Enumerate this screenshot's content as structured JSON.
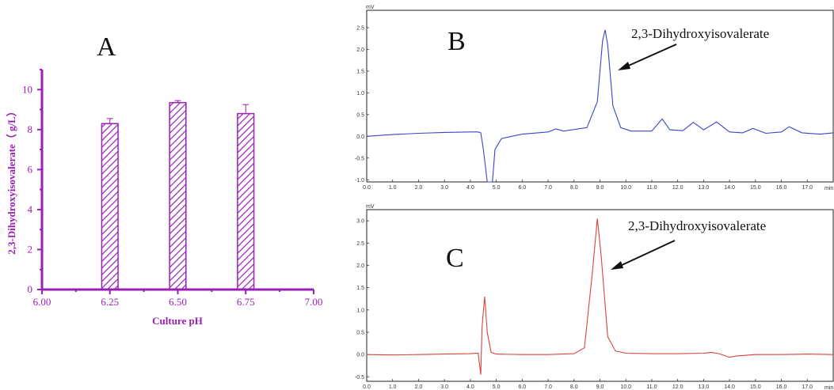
{
  "colors": {
    "bar": "#9a1fb5",
    "trace_b": "#3a44c8",
    "trace_c": "#d9443a"
  },
  "chart_data": [
    {
      "type": "bar",
      "panel_label": "A",
      "xlabel": "Culture pH",
      "ylabel": "2,3-Dihydroxyisovalerate（ g/L）",
      "x_ticks": [
        "6.00",
        "6.25",
        "6.50",
        "6.75",
        "7.00"
      ],
      "xlim": [
        6.0,
        7.0
      ],
      "ylim": [
        0,
        11
      ],
      "y_ticks": [
        "0",
        "2",
        "4",
        "6",
        "8",
        "10"
      ],
      "categories": [
        "6.25",
        "6.50",
        "6.75"
      ],
      "values": [
        8.3,
        9.35,
        8.8
      ],
      "errors": [
        0.25,
        0.1,
        0.45
      ],
      "grid": false
    },
    {
      "type": "line",
      "panel_label": "B",
      "y_unit": "mV",
      "x_unit": "min",
      "xlim": [
        0,
        18
      ],
      "ylim": [
        -1.05,
        2.9
      ],
      "x_ticks": [
        "0.0",
        "1.0",
        "2.0",
        "3.0",
        "4.0",
        "5.0",
        "6.0",
        "7.0",
        "8.0",
        "9.0",
        "10.0",
        "11.0",
        "12.0",
        "13.0",
        "14.0",
        "15.0",
        "16.0",
        "17.0"
      ],
      "y_ticks": [
        "-1.0",
        "-0.5",
        "0.0",
        "0.5",
        "1.0",
        "1.5",
        "2.0",
        "2.5"
      ],
      "annotation": "2,3-Dihydroxyisovalerate",
      "series": [
        {
          "x": [
            0.0,
            1.0,
            2.0,
            3.0,
            4.0,
            4.3,
            4.4,
            4.5,
            4.65,
            4.85,
            4.95,
            5.2,
            6.0,
            7.0,
            7.3,
            7.6,
            8.5,
            8.9,
            9.1,
            9.2,
            9.3,
            9.5,
            9.8,
            10.2,
            11.0,
            11.4,
            11.7,
            12.2,
            12.6,
            13.0,
            13.5,
            14.0,
            14.5,
            14.9,
            15.4,
            16.0,
            16.3,
            16.8,
            17.5,
            18.0
          ],
          "y": [
            0.0,
            0.04,
            0.07,
            0.09,
            0.1,
            0.1,
            0.08,
            -0.3,
            -1.05,
            -1.05,
            -0.3,
            -0.05,
            0.05,
            0.1,
            0.17,
            0.12,
            0.2,
            0.8,
            2.2,
            2.45,
            2.1,
            0.7,
            0.2,
            0.12,
            0.12,
            0.4,
            0.15,
            0.13,
            0.32,
            0.15,
            0.33,
            0.1,
            0.08,
            0.18,
            0.07,
            0.1,
            0.22,
            0.08,
            0.05,
            0.08
          ]
        }
      ]
    },
    {
      "type": "line",
      "panel_label": "C",
      "y_unit": "mV",
      "x_unit": "min",
      "xlim": [
        0,
        18
      ],
      "ylim": [
        -0.6,
        3.25
      ],
      "x_ticks": [
        "0.0",
        "1.0",
        "2.0",
        "3.0",
        "4.0",
        "5.0",
        "6.0",
        "7.0",
        "8.0",
        "9.0",
        "10.0",
        "11.0",
        "12.0",
        "13.0",
        "14.0",
        "15.0",
        "16.0",
        "17.0"
      ],
      "y_ticks": [
        "-0.5",
        "0.0",
        "0.5",
        "1.0",
        "1.5",
        "2.0",
        "2.5",
        "3.0"
      ],
      "annotation": "2,3-Dihydroxyisovalerate",
      "series": [
        {
          "x": [
            0.0,
            1.0,
            2.0,
            3.0,
            4.0,
            4.3,
            4.4,
            4.45,
            4.55,
            4.65,
            4.8,
            5.0,
            6.0,
            7.0,
            8.0,
            8.4,
            8.7,
            8.9,
            9.05,
            9.3,
            9.6,
            10.0,
            11.0,
            12.0,
            13.0,
            13.3,
            13.6,
            14.0,
            14.3,
            15.0,
            16.0,
            17.0,
            18.0
          ],
          "y": [
            0.0,
            -0.01,
            0.0,
            0.01,
            0.02,
            0.03,
            -0.45,
            0.6,
            1.3,
            0.5,
            0.05,
            0.01,
            0.0,
            0.0,
            0.02,
            0.15,
            1.8,
            3.05,
            2.2,
            0.4,
            0.08,
            0.03,
            0.02,
            0.02,
            0.03,
            0.05,
            0.02,
            -0.06,
            -0.03,
            0.0,
            0.0,
            0.01,
            0.0
          ]
        }
      ]
    }
  ]
}
